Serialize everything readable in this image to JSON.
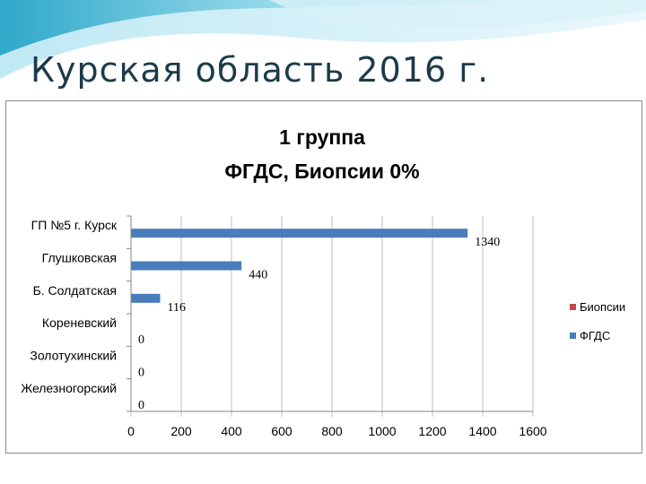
{
  "slide": {
    "title": "Курская область 2016 г."
  },
  "colors": {
    "fgds": "#4a7ebb",
    "biopsy": "#be4b48",
    "grid": "#bfbfbf",
    "title_text": "#1c3b4a"
  },
  "chart_data": {
    "type": "bar",
    "orientation": "horizontal",
    "title_lines": [
      "1 группа",
      "ФГДС, Биопсии 0%"
    ],
    "categories": [
      "ГП №5 г. Курск",
      "Глушковская",
      "Б. Солдатская",
      "Кореневский",
      "Золотухинский",
      "Железногорский"
    ],
    "series": [
      {
        "name": "Биопсии",
        "color": "#be4b48",
        "values": [
          0,
          0,
          0,
          0,
          0,
          0
        ]
      },
      {
        "name": "ФГДС",
        "color": "#4a7ebb",
        "values": [
          1340,
          440,
          116,
          0,
          0,
          0
        ]
      }
    ],
    "data_labels": [
      "1340",
      "440",
      "116",
      "0",
      "0",
      "0"
    ],
    "x_ticks": [
      "0",
      "200",
      "400",
      "600",
      "800",
      "1000",
      "1200",
      "1400",
      "1600"
    ],
    "xlim": [
      0,
      1600
    ],
    "grid": true,
    "legend_position": "right"
  }
}
